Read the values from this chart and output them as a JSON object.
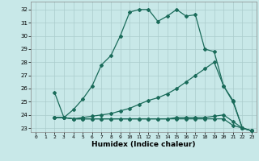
{
  "title": "",
  "xlabel": "Humidex (Indice chaleur)",
  "background_color": "#c8e8e8",
  "grid_color": "#aacccc",
  "line_color": "#1a6b5a",
  "xlim": [
    -0.5,
    23.5
  ],
  "ylim": [
    22.7,
    32.6
  ],
  "yticks": [
    23,
    24,
    25,
    26,
    27,
    28,
    29,
    30,
    31,
    32
  ],
  "xticks": [
    0,
    1,
    2,
    3,
    4,
    5,
    6,
    7,
    8,
    9,
    10,
    11,
    12,
    13,
    14,
    15,
    16,
    17,
    18,
    19,
    20,
    21,
    22,
    23
  ],
  "series": [
    {
      "x": [
        2,
        3,
        4,
        5,
        6,
        7,
        8,
        9,
        10,
        11,
        12,
        13,
        14,
        15,
        16,
        17,
        18,
        19,
        20,
        21,
        22,
        23
      ],
      "y": [
        25.7,
        23.8,
        24.4,
        25.2,
        26.2,
        27.8,
        28.5,
        30.0,
        31.8,
        32.0,
        32.0,
        31.1,
        31.5,
        32.0,
        31.5,
        31.6,
        29.0,
        28.8,
        26.2,
        25.1,
        23.0,
        22.8
      ]
    },
    {
      "x": [
        2,
        3,
        4,
        5,
        6,
        7,
        8,
        9,
        10,
        11,
        12,
        13,
        14,
        15,
        16,
        17,
        18,
        19,
        20,
        21,
        22,
        23
      ],
      "y": [
        23.8,
        23.8,
        23.7,
        23.8,
        23.9,
        24.0,
        24.1,
        24.3,
        24.5,
        24.8,
        25.1,
        25.3,
        25.6,
        26.0,
        26.5,
        27.0,
        27.5,
        28.0,
        26.2,
        25.0,
        23.0,
        22.8
      ]
    },
    {
      "x": [
        2,
        3,
        4,
        5,
        6,
        7,
        8,
        9,
        10,
        11,
        12,
        13,
        14,
        15,
        16,
        17,
        18,
        19,
        20,
        21,
        22,
        23
      ],
      "y": [
        23.8,
        23.8,
        23.7,
        23.7,
        23.7,
        23.7,
        23.7,
        23.7,
        23.7,
        23.7,
        23.7,
        23.7,
        23.7,
        23.8,
        23.8,
        23.8,
        23.8,
        23.9,
        24.0,
        23.5,
        23.0,
        22.8
      ]
    },
    {
      "x": [
        2,
        3,
        4,
        5,
        6,
        7,
        8,
        9,
        10,
        11,
        12,
        13,
        14,
        15,
        16,
        17,
        18,
        19,
        20,
        21,
        22,
        23
      ],
      "y": [
        23.8,
        23.8,
        23.7,
        23.7,
        23.7,
        23.7,
        23.7,
        23.7,
        23.7,
        23.7,
        23.7,
        23.7,
        23.7,
        23.7,
        23.7,
        23.7,
        23.7,
        23.7,
        23.7,
        23.2,
        23.0,
        22.8
      ]
    }
  ]
}
